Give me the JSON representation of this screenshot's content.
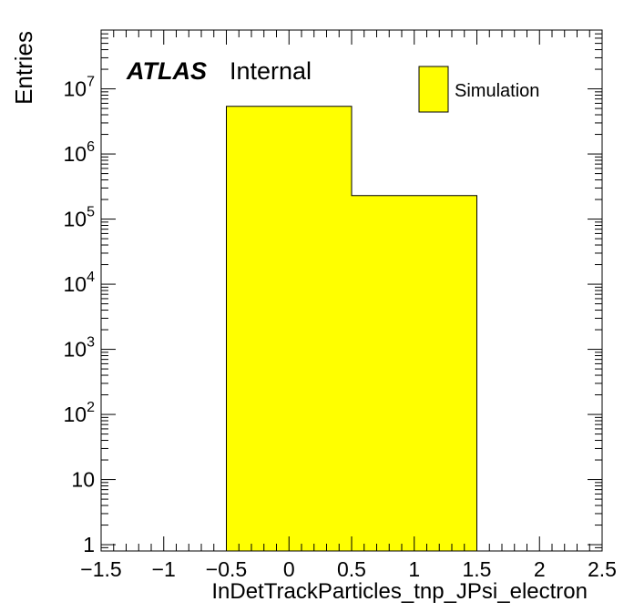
{
  "chart_data": {
    "type": "bar",
    "histogram": true,
    "bins": [
      {
        "low": -0.5,
        "high": 0.5,
        "value": 5400000
      },
      {
        "low": 0.5,
        "high": 1.5,
        "value": 230000
      }
    ],
    "fill_color": "#ffff00",
    "xlabel": "InDetTrackParticles_tnp_JPsi_electron",
    "ylabel": "Entries",
    "xlim": [
      -1.5,
      2.5
    ],
    "ylim": [
      0.8,
      80000000
    ],
    "yscale": "log",
    "grid": false,
    "x_ticks": [
      {
        "value": -1.5,
        "label": "−1.5"
      },
      {
        "value": -1,
        "label": "−1"
      },
      {
        "value": -0.5,
        "label": "−0.5"
      },
      {
        "value": 0,
        "label": "0"
      },
      {
        "value": 0.5,
        "label": "0.5"
      },
      {
        "value": 1,
        "label": "1"
      },
      {
        "value": 1.5,
        "label": "1.5"
      },
      {
        "value": 2,
        "label": "2"
      },
      {
        "value": 2.5,
        "label": "2.5"
      }
    ],
    "y_ticks": [
      {
        "value": 1,
        "base": "1",
        "exp": ""
      },
      {
        "value": 10,
        "base": "10",
        "exp": ""
      },
      {
        "value": 100,
        "base": "10",
        "exp": "2"
      },
      {
        "value": 1000,
        "base": "10",
        "exp": "3"
      },
      {
        "value": 10000,
        "base": "10",
        "exp": "4"
      },
      {
        "value": 100000,
        "base": "10",
        "exp": "5"
      },
      {
        "value": 1000000,
        "base": "10",
        "exp": "6"
      },
      {
        "value": 10000000,
        "base": "10",
        "exp": "7"
      }
    ],
    "legend": {
      "position": "top-right",
      "entries": [
        {
          "name": "Simulation",
          "color": "#ffff00"
        }
      ]
    },
    "atlas_label": {
      "bold": "ATLAS",
      "text": "Internal"
    }
  }
}
